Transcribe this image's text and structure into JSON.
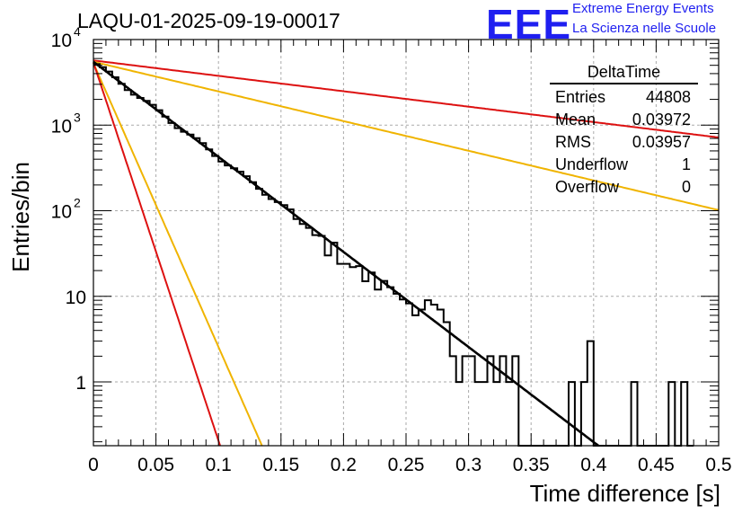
{
  "header": {
    "title": "LAQU-01-2025-09-19-00017",
    "logo_text": "EEE",
    "logo_line1": "Extreme Energy Events",
    "logo_line2": "La Scienza nelle Scuole"
  },
  "stats": {
    "name": "DeltaTime",
    "rows": [
      {
        "label": "Entries",
        "value": "44808"
      },
      {
        "label": "Mean",
        "value": "0.03972"
      },
      {
        "label": "RMS",
        "value": "0.03957"
      },
      {
        "label": "Underflow",
        "value": "1"
      },
      {
        "label": "Overflow",
        "value": "0"
      }
    ]
  },
  "chart_data": {
    "type": "histogram",
    "xlabel": "Time difference [s]",
    "ylabel": "Entries/bin",
    "xlim": [
      0,
      0.5
    ],
    "ylim_log": [
      0.18,
      10000
    ],
    "yscale": "log",
    "grid": true,
    "x_ticks": [
      "0",
      "0.05",
      "0.1",
      "0.15",
      "0.2",
      "0.25",
      "0.3",
      "0.35",
      "0.4",
      "0.45",
      "0.5"
    ],
    "y_ticks": [
      {
        "value": 1,
        "label": "1"
      },
      {
        "value": 10,
        "label": "10"
      },
      {
        "value": 100,
        "label": "10",
        "exp": "2"
      },
      {
        "value": 1000,
        "label": "10",
        "exp": "3"
      },
      {
        "value": 10000,
        "label": "10",
        "exp": "4"
      }
    ],
    "histogram": {
      "bin_width": 0.005,
      "high_bins": [
        {
          "x": 0.29,
          "v": 1
        },
        {
          "x": 0.295,
          "v": 2
        },
        {
          "x": 0.3,
          "v": 2
        },
        {
          "x": 0.305,
          "v": 1
        },
        {
          "x": 0.31,
          "v": 1
        },
        {
          "x": 0.315,
          "v": 2
        },
        {
          "x": 0.32,
          "v": 1
        },
        {
          "x": 0.325,
          "v": 2
        },
        {
          "x": 0.33,
          "v": 1
        },
        {
          "x": 0.335,
          "v": 2
        },
        {
          "x": 0.34,
          "v": 0
        },
        {
          "x": 0.345,
          "v": 0
        },
        {
          "x": 0.38,
          "v": 1
        },
        {
          "x": 0.385,
          "v": 0
        },
        {
          "x": 0.39,
          "v": 1
        },
        {
          "x": 0.395,
          "v": 3
        },
        {
          "x": 0.4,
          "v": 0
        },
        {
          "x": 0.43,
          "v": 1
        },
        {
          "x": 0.435,
          "v": 0
        },
        {
          "x": 0.46,
          "v": 1
        },
        {
          "x": 0.465,
          "v": 0
        },
        {
          "x": 0.47,
          "v": 1
        },
        {
          "x": 0.475,
          "v": 0
        }
      ],
      "fluctuation_bins": [
        {
          "x": 0.16,
          "v": 80
        },
        {
          "x": 0.165,
          "v": 70
        },
        {
          "x": 0.175,
          "v": 52
        },
        {
          "x": 0.185,
          "v": 30
        },
        {
          "x": 0.195,
          "v": 24
        },
        {
          "x": 0.2,
          "v": 24
        },
        {
          "x": 0.205,
          "v": 22
        },
        {
          "x": 0.215,
          "v": 15
        },
        {
          "x": 0.225,
          "v": 12
        },
        {
          "x": 0.255,
          "v": 6
        },
        {
          "x": 0.26,
          "v": 7
        },
        {
          "x": 0.265,
          "v": 9
        },
        {
          "x": 0.27,
          "v": 8
        },
        {
          "x": 0.275,
          "v": 7
        },
        {
          "x": 0.28,
          "v": 5
        },
        {
          "x": 0.285,
          "v": 2
        }
      ]
    },
    "fit": {
      "name": "black exponential fit",
      "A": 5500,
      "tau": 0.0391,
      "color": "#000000"
    },
    "curves": [
      {
        "name": "red slow",
        "A": 5700,
        "tau": 0.2413,
        "color": "#dd1111"
      },
      {
        "name": "yellow slow",
        "A": 5500,
        "tau": 0.1253,
        "color": "#f0b400"
      },
      {
        "name": "yellow fast",
        "A": 5300,
        "tau": 0.0131,
        "color": "#f0b400"
      },
      {
        "name": "red fast",
        "A": 5400,
        "tau": 0.00983,
        "color": "#dd1111"
      }
    ]
  }
}
